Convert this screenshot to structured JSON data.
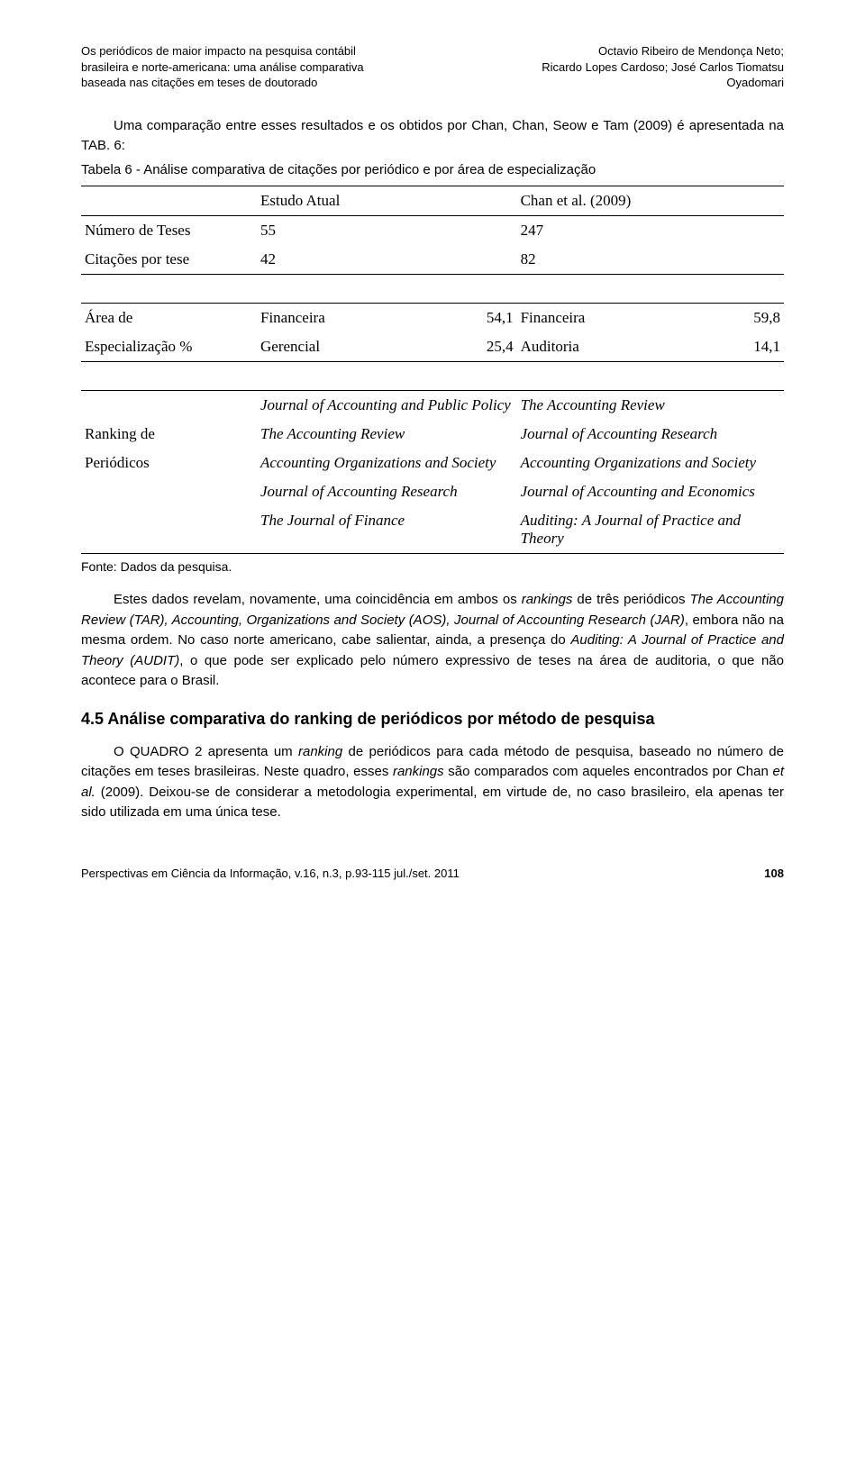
{
  "header": {
    "left_lines": [
      "Os periódicos de maior impacto na pesquisa contábil",
      "brasileira e norte-americana: uma análise comparativa",
      "baseada nas citações em teses de doutorado"
    ],
    "right_lines": [
      "Octavio Ribeiro de Mendonça Neto;",
      "Ricardo Lopes Cardoso; José Carlos Tiomatsu",
      "Oyadomari"
    ]
  },
  "body": {
    "intro_para": "Uma comparação entre esses resultados e os obtidos por Chan, Chan, Seow e Tam (2009) é apresentada na TAB. 6:",
    "table_caption": "Tabela 6 - Análise comparativa de citações por periódico e por área de especialização",
    "table6": {
      "cols": [
        "",
        "Estudo Atual",
        "Chan et al. (2009)"
      ],
      "counts": [
        {
          "label": "Número de Teses",
          "a": "55",
          "b": "247"
        },
        {
          "label": "Citações por tese",
          "a": "42",
          "b": "82"
        }
      ],
      "area_label_1": "Área de",
      "area_label_2": "Especialização %",
      "area_rows": [
        {
          "mid_lbl": "Financeira",
          "mid_val": "54,1",
          "r_lbl": "Financeira",
          "r_val": "59,8"
        },
        {
          "mid_lbl": "Gerencial",
          "mid_val": "25,4",
          "r_lbl": "Auditoria",
          "r_val": "14,1"
        }
      ],
      "rank_label_1": "Ranking de",
      "rank_label_2": "Periódicos",
      "rank_rows": [
        {
          "mid": "Journal of Accounting and Public Policy",
          "r": "The Accounting Review"
        },
        {
          "mid": "The Accounting Review",
          "r": "Journal of Accounting Research"
        },
        {
          "mid": "Accounting Organizations and Society",
          "r": "Accounting Organizations and Society"
        },
        {
          "mid": "Journal of Accounting Research",
          "r": "Journal of Accounting and Economics"
        },
        {
          "mid": "The Journal of Finance",
          "r": "Auditing: A Journal of Practice and Theory"
        }
      ]
    },
    "fonte": "Fonte: Dados da pesquisa.",
    "para_after": "Estes dados revelam, novamente, uma coincidência em ambos os <i>rankings</i> de três periódicos <i>The Accounting Review (TAR), Accounting, Organizations and Society (AOS), Journal of Accounting Research (JAR)</i>, embora não na mesma ordem. No caso norte americano, cabe salientar, ainda, a presença do <i>Auditing: A Journal of Practice and Theory (AUDIT)</i>, o que pode ser explicado pelo número expressivo de teses na área de auditoria, o que não acontece para o Brasil.",
    "section_heading": "4.5 Análise comparativa do ranking de periódicos por método de pesquisa",
    "para_last": "O QUADRO 2 apresenta um <i>ranking</i> de periódicos para cada método de pesquisa, baseado no número de citações em teses brasileiras. Neste quadro, esses <i>rankings</i> são comparados com aqueles encontrados por Chan <i>et al.</i> (2009). Deixou-se de considerar a metodologia experimental, em virtude de, no caso brasileiro, ela apenas ter sido utilizada em uma única tese."
  },
  "footer": {
    "left": "Perspectivas em Ciência da Informação, v.16, n.3, p.93-115 jul./set. 2011",
    "page": "108"
  }
}
